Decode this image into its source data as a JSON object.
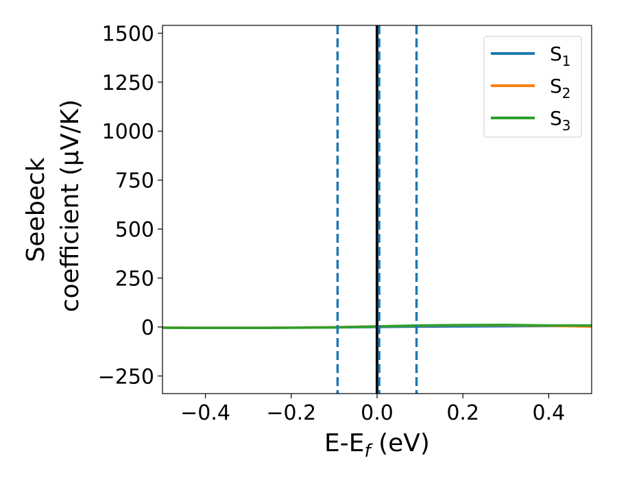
{
  "chart_data": {
    "type": "line",
    "xlabel": {
      "main": "E-E",
      "sub": "f",
      "unit": " (eV)"
    },
    "ylabel": {
      "line1": "Seebeck",
      "line2": "coefficient  (μV/K)"
    },
    "xlim": [
      -0.5,
      0.5
    ],
    "ylim": [
      -340,
      1540
    ],
    "xticks": [
      -0.4,
      -0.2,
      0.0,
      0.2,
      0.4
    ],
    "xtick_labels": [
      "−0.4",
      "−0.2",
      "0.0",
      "0.2",
      "0.4"
    ],
    "yticks": [
      -250,
      0,
      250,
      500,
      750,
      1000,
      1250,
      1500
    ],
    "ytick_labels": [
      "−250",
      "0",
      "250",
      "500",
      "750",
      "1000",
      "1250",
      "1500"
    ],
    "grid": false,
    "legend_position": "top-right",
    "vertical_lines": [
      {
        "x": 0.0,
        "style": "solid",
        "color": "#000000"
      },
      {
        "x": -0.092,
        "style": "dashed",
        "color": "#1f77b4"
      },
      {
        "x": 0.005,
        "style": "dashed",
        "color": "#1f77b4"
      },
      {
        "x": 0.092,
        "style": "dashed",
        "color": "#1f77b4"
      }
    ],
    "x": [
      -0.5,
      -0.4,
      -0.3,
      -0.2,
      -0.1,
      0.0,
      0.1,
      0.2,
      0.3,
      0.4,
      0.5
    ],
    "series": [
      {
        "name": "S",
        "sub": "1",
        "color": "#1f77b4",
        "values": [
          -3,
          -4,
          -4,
          -3,
          -2,
          0,
          2,
          3,
          4,
          5,
          6
        ]
      },
      {
        "name": "S",
        "sub": "2",
        "color": "#ff7f0e",
        "values": [
          -3,
          -4,
          -4,
          -3,
          -1,
          3,
          7,
          9,
          9,
          6,
          2
        ]
      },
      {
        "name": "S",
        "sub": "3",
        "color": "#2ca02c",
        "values": [
          -4,
          -5,
          -5,
          -4,
          -2,
          3,
          8,
          10,
          11,
          8,
          8
        ]
      }
    ]
  }
}
